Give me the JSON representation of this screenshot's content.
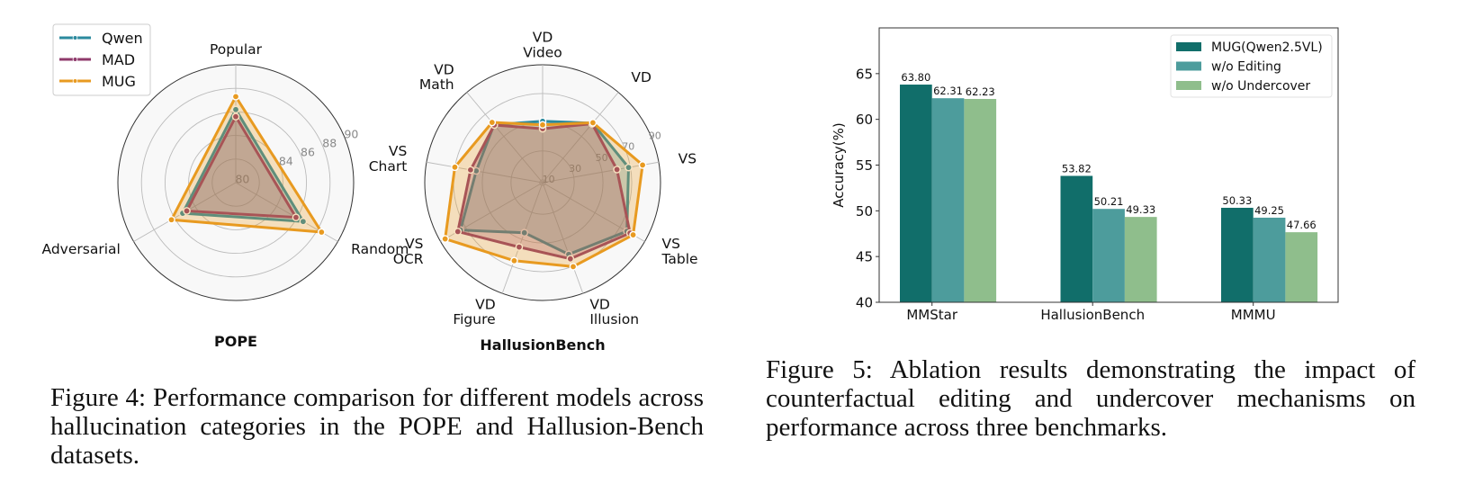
{
  "figure4": {
    "caption": "Figure 4: Performance comparison for different models across hallucination categories in the POPE and Hallusion-Bench datasets.",
    "legend": [
      {
        "name": "Qwen",
        "color": "#2b8a9e"
      },
      {
        "name": "MAD",
        "color": "#8f3a6b"
      },
      {
        "name": "MUG",
        "color": "#e89a20"
      }
    ]
  },
  "figure5": {
    "caption": "Figure 5: Ablation results demonstrating the impact of counterfactual editing and undercover mechanisms on performance across three benchmarks."
  },
  "chart_data": [
    {
      "type": "radar",
      "title": "POPE",
      "axes": [
        "Popular",
        "Random",
        "Adversarial"
      ],
      "rlim": [
        80,
        90
      ],
      "rticks": [
        80,
        84,
        86,
        88,
        90
      ],
      "rgrid": [
        82,
        84,
        86,
        88,
        90
      ],
      "series": [
        {
          "name": "Qwen",
          "color": "#2b8a9e",
          "values": [
            86.2,
            86.6,
            85.2
          ]
        },
        {
          "name": "MAD",
          "color": "#8f3a6b",
          "values": [
            85.6,
            85.9,
            84.8
          ]
        },
        {
          "name": "MUG",
          "color": "#e89a20",
          "values": [
            87.3,
            88.4,
            86.3
          ]
        }
      ],
      "legend": "top-left"
    },
    {
      "type": "radar",
      "title": "HallusionBench",
      "axes": [
        "VD\nVideo",
        "VD",
        "VS",
        "VS\nTable",
        "VD\nIllusion",
        "VD\nFigure",
        "VS\nOCR",
        "VS\nChart",
        "VD\nMath"
      ],
      "rlim": [
        8,
        90
      ],
      "rticks": [
        10,
        30,
        50,
        70,
        90
      ],
      "rgrid": [
        10,
        30,
        50,
        70,
        90
      ],
      "series": [
        {
          "name": "Qwen",
          "color": "#2b8a9e",
          "values": [
            50.7,
            62.0,
            68.7,
            75.7,
            61.1,
            45.1,
            74.0,
            54.9,
            60.6
          ]
        },
        {
          "name": "MAD",
          "color": "#8f3a6b",
          "values": [
            45.5,
            61.5,
            60.5,
            78.2,
            64.4,
            55.7,
            76.1,
            58.9,
            60.3
          ]
        },
        {
          "name": "MUG",
          "color": "#e89a20",
          "values": [
            48.2,
            62.4,
            78.6,
            80.7,
            70.2,
            65.8,
            86.3,
            70.0,
            62.7
          ]
        }
      ]
    },
    {
      "type": "bar",
      "title": "",
      "categories": [
        "MMStar",
        "HallusionBench",
        "MMMU"
      ],
      "series": [
        {
          "name": "MUG(Qwen2.5VL)",
          "color": "#116e6a",
          "values": [
            63.8,
            53.82,
            50.33
          ],
          "labels": [
            "63.80",
            "53.82",
            "50.33"
          ]
        },
        {
          "name": "w/o Editing",
          "color": "#4d9c9c",
          "values": [
            62.31,
            50.21,
            49.25
          ],
          "labels": [
            "62.31",
            "50.21",
            "49.25"
          ]
        },
        {
          "name": "w/o Undercover",
          "color": "#8fbe8c",
          "values": [
            62.23,
            49.33,
            47.66
          ],
          "labels": [
            "62.23",
            "49.33",
            "47.66"
          ]
        }
      ],
      "xlabel": "",
      "ylabel": "Accuracy(%)",
      "ylim": [
        40,
        70
      ],
      "yticks": [
        40,
        45,
        50,
        55,
        60,
        65
      ],
      "grid": false,
      "legend": "top-right"
    }
  ]
}
